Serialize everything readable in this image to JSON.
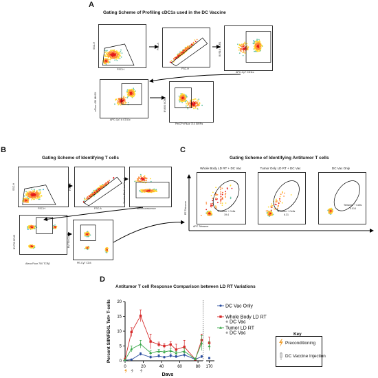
{
  "panels": {
    "A": {
      "letter": "A",
      "title": "Gating Scheme of Profiling cDC1s used in the DC Vaccine",
      "plots": [
        {
          "xlabel": "FSC-H",
          "ylabel": "SSC-H"
        },
        {
          "xlabel": "FSC-H",
          "ylabel": "FSC-A"
        },
        {
          "xlabel": "APC-Cy7 CD11c",
          "ylabel": "BV510 XCR1"
        },
        {
          "xlabel": "APC-Cy7 A CD11c",
          "ylabel": "eFluor 450 MHCII"
        },
        {
          "xlabel": "PerCP eFluor 710 SIRPα",
          "ylabel": "BV650 XCR1"
        }
      ]
    },
    "B": {
      "letter": "B",
      "title": "Gating Scheme of Identifying T cells",
      "plots": [
        {
          "xlabel": "FSC-H",
          "ylabel": "SSC-H"
        },
        {
          "xlabel": "FSC-A",
          "ylabel": "FSC-H"
        },
        {
          "xlabel": "Autofluorescence",
          "ylabel": "Zombie Red Live Dead"
        },
        {
          "xlabel": "Alexa Fluor 700 TCRβ",
          "ylabel": "BV750 CD45"
        },
        {
          "xlabel": "PE-Cy7 CD4",
          "ylabel": "BV750 CD8α"
        }
      ]
    },
    "C": {
      "letter": "C",
      "title": "Gating Scheme of Identifying Antitumor T cells",
      "xaxis": "APC Tetramer",
      "yaxis": "PE Tetramer",
      "plots": [
        {
          "title": "Whole Body LD RT + DC Vac",
          "gate_label": "Tetramer + Cells",
          "gate_value": "19.4"
        },
        {
          "title": "Tumor Only LD RT + DC Vac",
          "gate_label": "Tetramer + Cells",
          "gate_value": "6.31"
        },
        {
          "title": "DC Vac Only",
          "gate_label": "Tetramer + Cells",
          "gate_value": "0.014"
        }
      ]
    },
    "D": {
      "letter": "D",
      "title": "Antitumor T cell Response Comparison between LD RT Variations",
      "key_title": "Key",
      "key_items": [
        "Preconditioning",
        "DC Vaccine Injection"
      ],
      "significance": "*"
    }
  },
  "chart_data": {
    "type": "line",
    "title": "Antitumor T cell Response Comparison between LD RT Variations",
    "xlabel": "Days",
    "ylabel": "Percent SIINFEKL Tet+ T-cells",
    "ylim": [
      0,
      20
    ],
    "yticks": [
      0,
      5,
      10,
      15,
      20
    ],
    "xticks": [
      "0",
      "20",
      "40",
      "60",
      "80",
      "170"
    ],
    "x": [
      0,
      7,
      17,
      28,
      37,
      43,
      50,
      56,
      65,
      77,
      84,
      170
    ],
    "series": [
      {
        "name": "DC Vac Only",
        "color": "#2c4fa0",
        "marker": "circle",
        "values": [
          0.2,
          0.4,
          2.3,
          1.2,
          1.6,
          1.2,
          1.7,
          1.4,
          2.0,
          0.5,
          1.4,
          0.9
        ],
        "errors": [
          0.1,
          0.2,
          0.5,
          0.4,
          0.5,
          0.3,
          0.6,
          0.4,
          0.8,
          0.3,
          0.4,
          0.3
        ]
      },
      {
        "name": "Whole Body LD RT + DC Vac",
        "color": "#d62a2a",
        "marker": "square",
        "values": [
          0.6,
          9.7,
          15.2,
          6.5,
          5.5,
          5.0,
          5.5,
          3.8,
          4.7,
          0.5,
          7.0,
          6.0
        ],
        "errors": [
          0.2,
          1.5,
          2.0,
          2.5,
          0.8,
          0.8,
          1.0,
          1.8,
          2.2,
          0.4,
          2.0,
          2.0
        ]
      },
      {
        "name": "Tumor LD RT + DC Vac",
        "color": "#3aa84a",
        "marker": "triangle",
        "values": [
          0.3,
          4.0,
          5.6,
          2.7,
          3.2,
          3.0,
          3.4,
          2.6,
          3.2,
          0.6,
          6.0,
          5.0
        ],
        "errors": [
          0.1,
          1.0,
          1.3,
          0.8,
          0.6,
          0.6,
          0.8,
          0.6,
          1.0,
          0.3,
          2.5,
          1.5
        ]
      }
    ],
    "legend": "right",
    "annotations": [
      "*"
    ]
  }
}
